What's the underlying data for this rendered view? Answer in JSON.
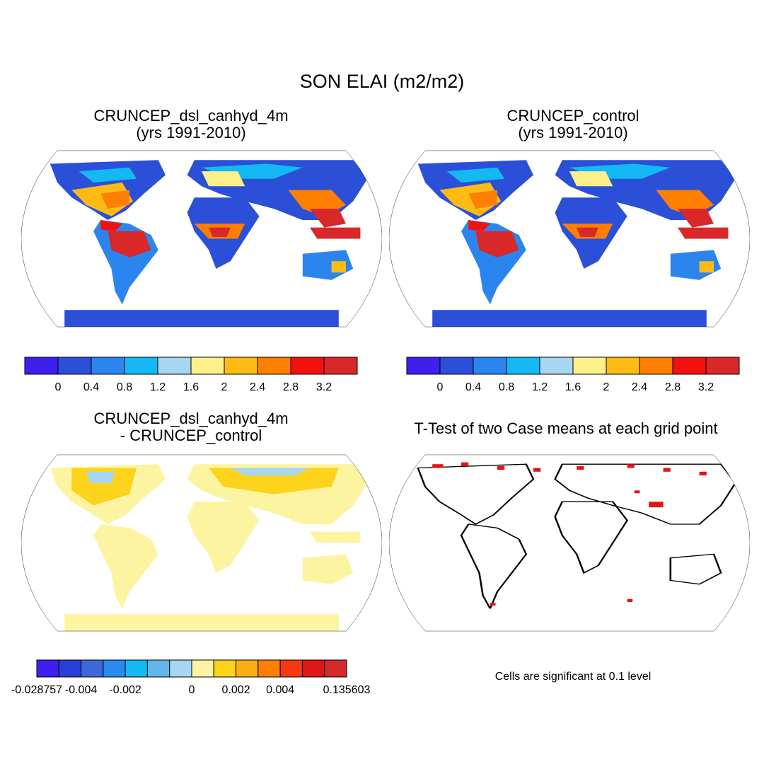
{
  "title": "SON ELAI (m2/m2)",
  "panels": [
    {
      "id": "p1",
      "title_line1": "CRUNCEP_dsl_canhyd_4m",
      "title_line2": "(yrs 1991-2010)"
    },
    {
      "id": "p2",
      "title_line1": "CRUNCEP_control",
      "title_line2": "(yrs 1991-2010)"
    },
    {
      "id": "p3",
      "title_line1": "CRUNCEP_dsl_canhyd_4m",
      "title_line2": "- CRUNCEP_control"
    },
    {
      "id": "p4",
      "title_line1": "T-Test of two Case means at each grid point",
      "title_line2": ""
    }
  ],
  "colorbar_main": {
    "colors": [
      "#3d1ff0",
      "#2c4fd8",
      "#2a86ee",
      "#14b8f4",
      "#a6d6f2",
      "#fcf08a",
      "#fdbb14",
      "#ff7f00",
      "#f51010",
      "#d8282a"
    ],
    "labels": [
      "0",
      "0.4",
      "0.8",
      "1.2",
      "1.6",
      "2",
      "2.4",
      "2.8",
      "3.2"
    ]
  },
  "colorbar_diff": {
    "colors": [
      "#3d1ff0",
      "#2c3ed8",
      "#3a6ad8",
      "#2a8aee",
      "#14b8f4",
      "#62b6ea",
      "#a6d6f2",
      "#fcf4a0",
      "#fdd31c",
      "#fdac12",
      "#ff7f00",
      "#f53a10",
      "#e01515",
      "#d42a2a"
    ],
    "labels": [
      "-0.028757",
      "-0.004",
      "-0.002",
      "0",
      "0.002",
      "0.004",
      "0.135603"
    ]
  },
  "significance_note": "Cells are significant at 0.1 level"
}
